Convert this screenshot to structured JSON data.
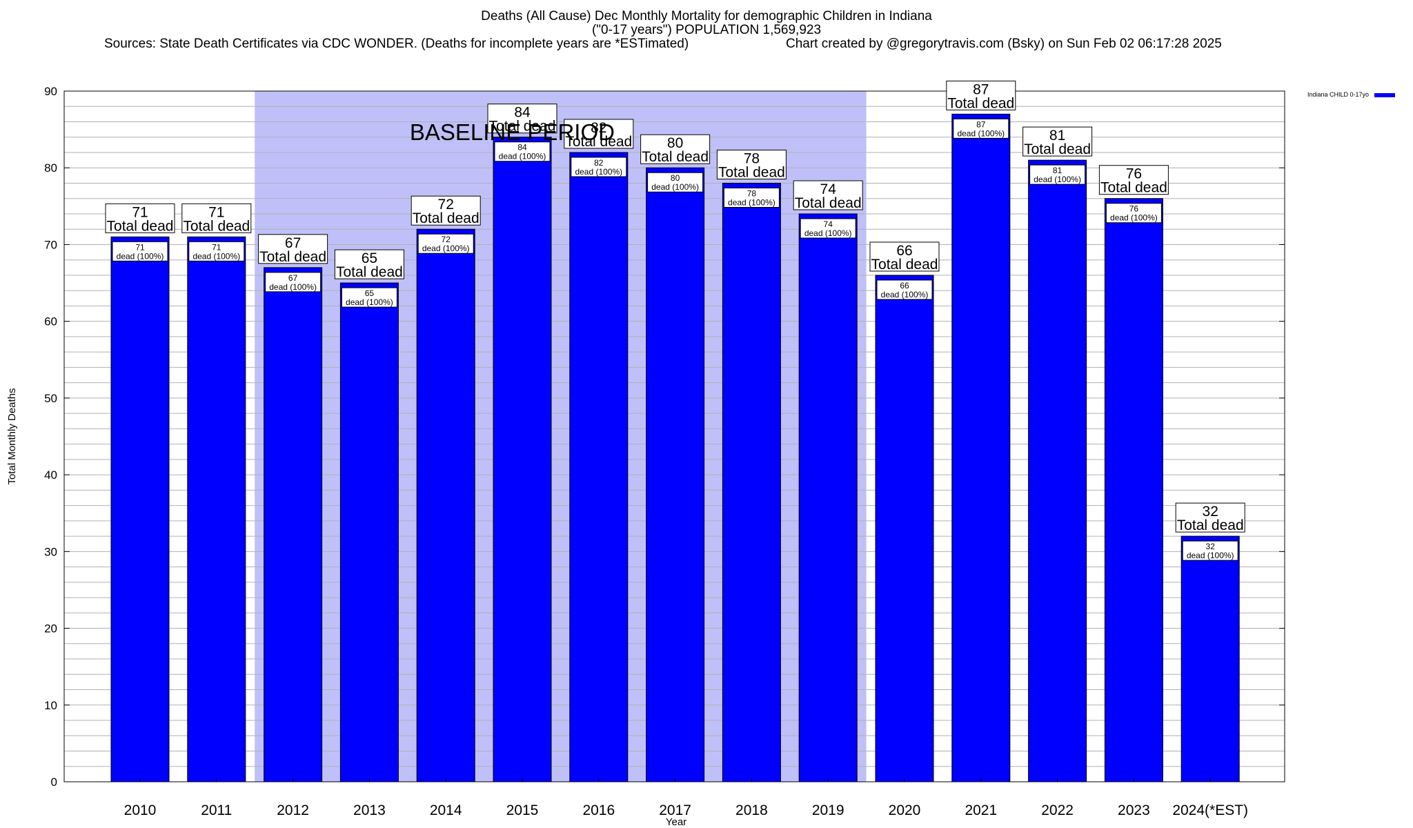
{
  "header": {
    "title_line1": "Deaths (All Cause) Dec Monthly Mortality for demographic Children in Indiana",
    "title_line2": "(\"0-17 years\") POPULATION 1,569,923",
    "sources": "Sources: State Death Certificates via CDC WONDER. (Deaths for incomplete years are *ESTimated)",
    "credit": "Chart created by @gregorytravis.com (Bsky) on Sun Feb 02 06:17:28 2025"
  },
  "legend": {
    "label": "Indiana CHILD 0-17yo"
  },
  "colors": {
    "bar": "#0000ff",
    "baseline_band": "#c0c0f8",
    "grid": "#b0b0b0"
  },
  "chart_data": {
    "type": "bar",
    "categories": [
      "2010",
      "2011",
      "2012",
      "2013",
      "2014",
      "2015",
      "2016",
      "2017",
      "2018",
      "2019",
      "2020",
      "2021",
      "2022",
      "2023",
      "2024(*EST)"
    ],
    "series": [
      {
        "name": "Indiana CHILD 0-17yo",
        "values": [
          71,
          71,
          67,
          65,
          72,
          84,
          82,
          80,
          78,
          74,
          66,
          87,
          81,
          76,
          32
        ]
      }
    ],
    "top_label_suffix": "Total dead",
    "inner_label_suffix": "dead (100%)",
    "xlabel": "Year",
    "ylabel": "Total Monthly Deaths",
    "ylim": [
      0,
      90
    ],
    "yticks": [
      0,
      10,
      20,
      30,
      40,
      50,
      60,
      70,
      80,
      90
    ],
    "grid": true,
    "baseline": {
      "label": "BASELINE PERIOD",
      "from": "2012",
      "to": "2019"
    },
    "legend_position": "top-right"
  }
}
